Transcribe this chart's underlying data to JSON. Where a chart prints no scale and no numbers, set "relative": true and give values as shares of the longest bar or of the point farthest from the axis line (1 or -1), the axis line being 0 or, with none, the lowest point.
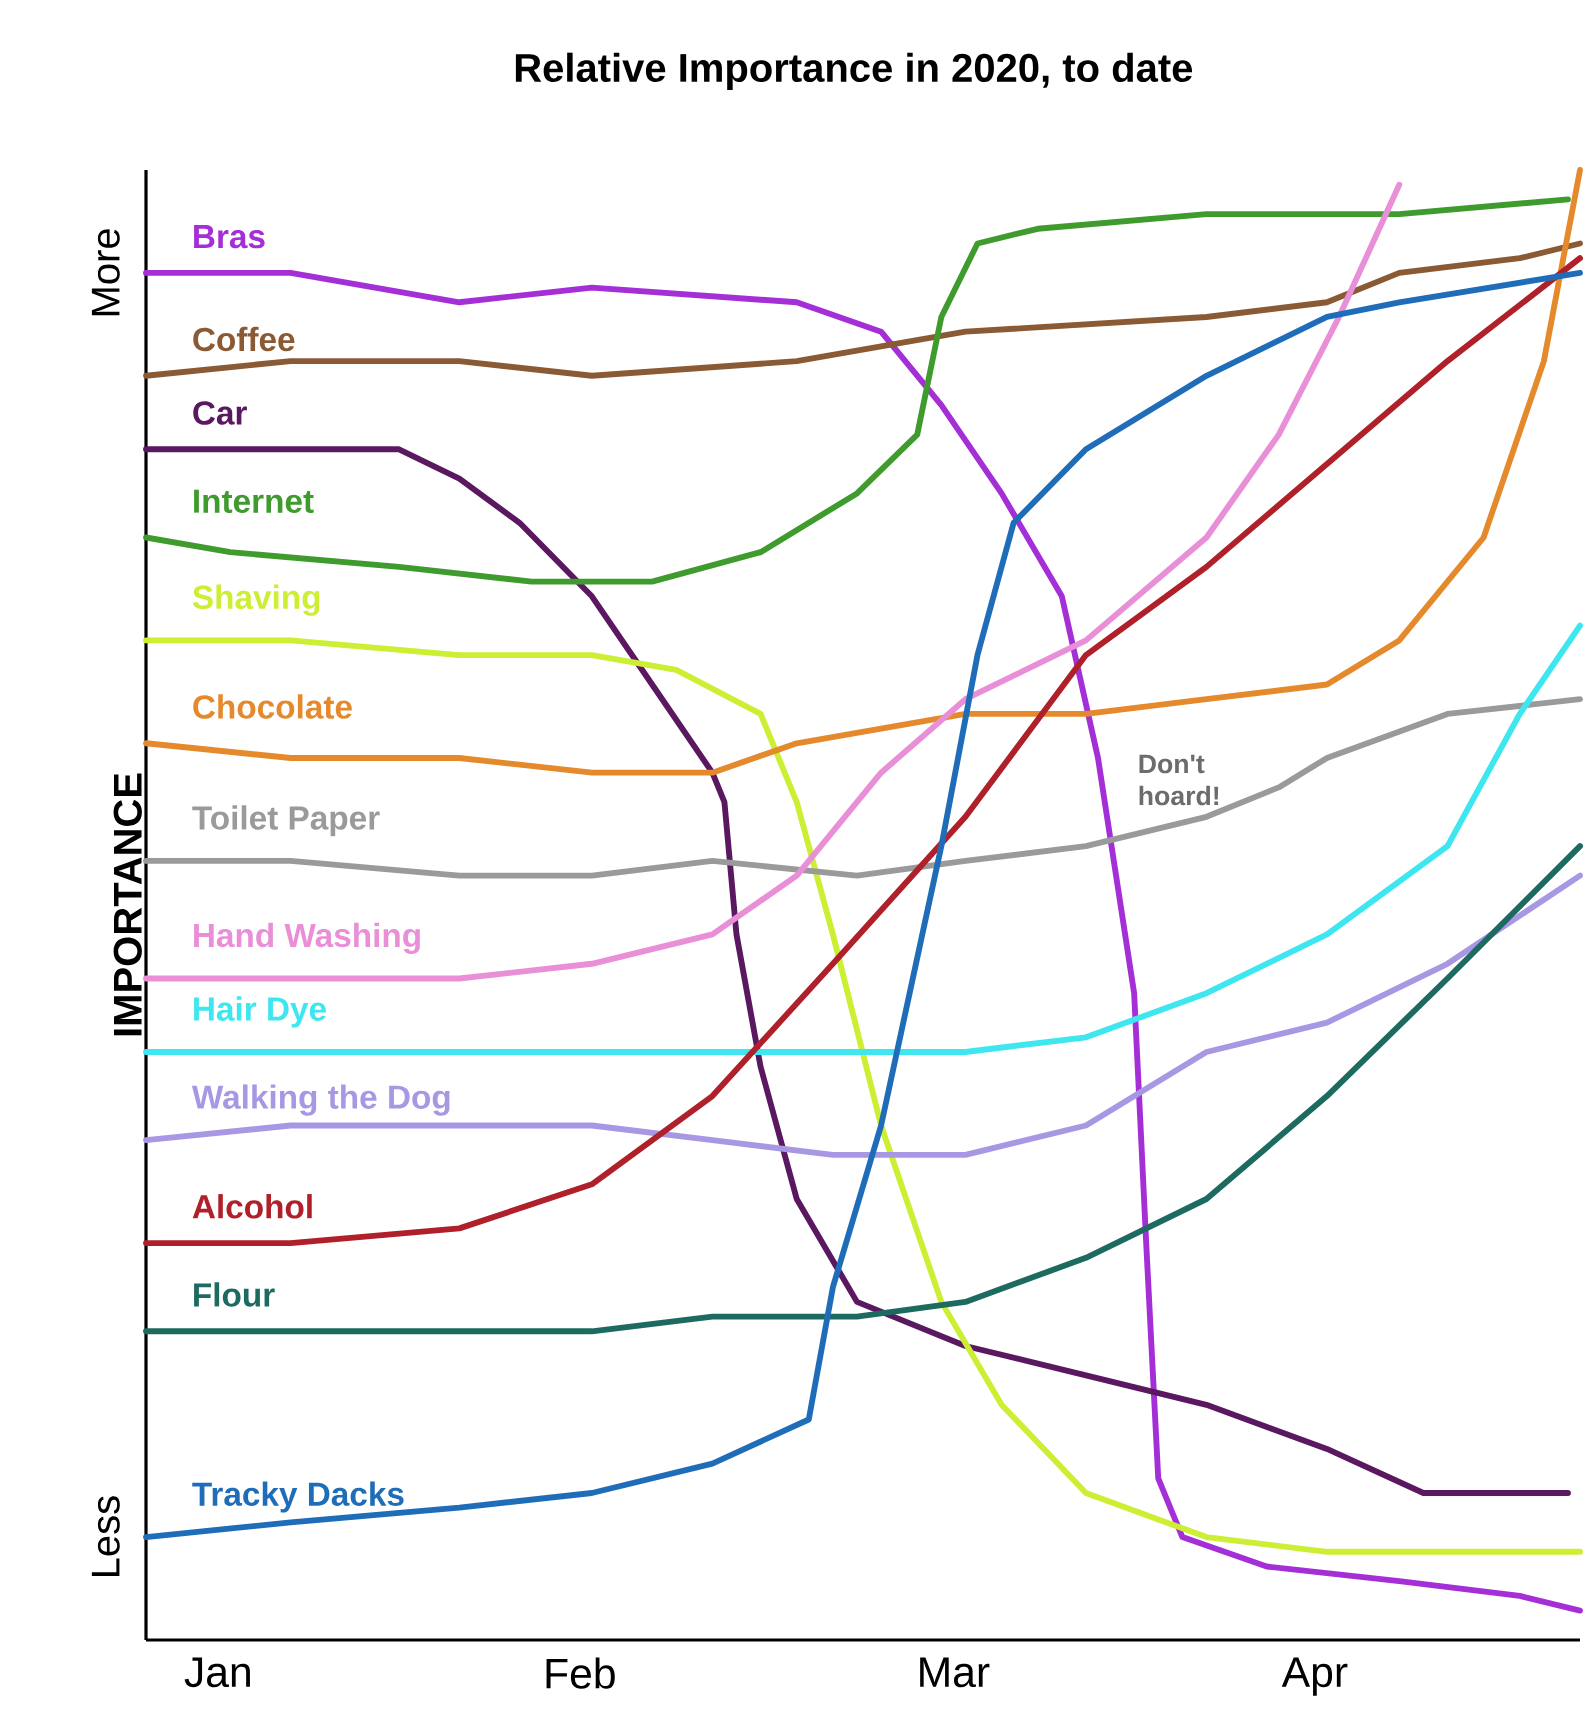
{
  "chart_data": {
    "type": "line",
    "title": "Relative Importance in 2020, to date",
    "ylabel": "IMPORTANCE",
    "relative": true,
    "marker": "none",
    "line_style": "solid",
    "xlim": [
      "2020-01-09",
      "2020-05-07"
    ],
    "xticks": [
      {
        "value": "2020-01-15",
        "label": "Jan"
      },
      {
        "value": "2020-02-14",
        "label": "Feb"
      },
      {
        "value": "2020-03-16",
        "label": "Mar"
      },
      {
        "value": "2020-04-15",
        "label": "Apr"
      }
    ],
    "annotations": [
      "More",
      "Less",
      "Don't hoard!"
    ],
    "series": [
      {
        "name": "Bras",
        "color": "#a52fd6",
        "x": [
          "2020-01-09",
          "2020-01-21",
          "2020-02-04",
          "2020-02-15",
          "2020-03-03",
          "2020-03-10",
          "2020-03-15",
          "2020-03-20",
          "2020-03-25",
          "2020-03-28",
          "2020-03-31",
          "2020-04-01",
          "2020-04-02",
          "2020-04-04",
          "2020-04-11",
          "2020-04-22",
          "2020-05-02",
          "2020-05-07"
        ],
        "values": [
          0.93,
          0.93,
          0.91,
          0.92,
          0.91,
          0.89,
          0.84,
          0.78,
          0.71,
          0.6,
          0.44,
          0.27,
          0.11,
          0.07,
          0.05,
          0.04,
          0.03,
          0.02
        ]
      },
      {
        "name": "Coffee",
        "color": "#8a5a34",
        "x": [
          "2020-01-09",
          "2020-01-21",
          "2020-02-04",
          "2020-02-15",
          "2020-03-03",
          "2020-03-17",
          "2020-04-06",
          "2020-04-16",
          "2020-04-22",
          "2020-05-02",
          "2020-05-07"
        ],
        "values": [
          0.86,
          0.87,
          0.87,
          0.86,
          0.87,
          0.89,
          0.9,
          0.91,
          0.93,
          0.94,
          0.95
        ]
      },
      {
        "name": "Car",
        "color": "#5a1860",
        "x": [
          "2020-01-09",
          "2020-01-21",
          "2020-01-30",
          "2020-02-04",
          "2020-02-09",
          "2020-02-15",
          "2020-02-20",
          "2020-02-25",
          "2020-02-26",
          "2020-02-27",
          "2020-02-29",
          "2020-03-03",
          "2020-03-08",
          "2020-03-17",
          "2020-03-27",
          "2020-04-06",
          "2020-04-16",
          "2020-04-24",
          "2020-04-29",
          "2020-05-02",
          "2020-05-06"
        ],
        "values": [
          0.81,
          0.81,
          0.81,
          0.79,
          0.76,
          0.71,
          0.65,
          0.59,
          0.57,
          0.48,
          0.39,
          0.3,
          0.23,
          0.2,
          0.18,
          0.16,
          0.13,
          0.1,
          0.1,
          0.1,
          0.1
        ]
      },
      {
        "name": "Internet",
        "color": "#3f9b2e",
        "x": [
          "2020-01-09",
          "2020-01-16",
          "2020-01-30",
          "2020-02-10",
          "2020-02-20",
          "2020-02-29",
          "2020-03-08",
          "2020-03-13",
          "2020-03-15",
          "2020-03-18",
          "2020-03-23",
          "2020-04-06",
          "2020-04-22",
          "2020-05-06"
        ],
        "values": [
          0.75,
          0.74,
          0.73,
          0.72,
          0.72,
          0.74,
          0.78,
          0.82,
          0.9,
          0.95,
          0.96,
          0.97,
          0.97,
          0.98
        ]
      },
      {
        "name": "Shaving",
        "color": "#ccee33",
        "x": [
          "2020-01-09",
          "2020-01-21",
          "2020-02-04",
          "2020-02-15",
          "2020-02-22",
          "2020-02-29",
          "2020-03-03",
          "2020-03-06",
          "2020-03-10",
          "2020-03-15",
          "2020-03-20",
          "2020-03-27",
          "2020-04-06",
          "2020-04-16",
          "2020-04-26",
          "2020-05-07"
        ],
        "values": [
          0.68,
          0.68,
          0.67,
          0.67,
          0.66,
          0.63,
          0.57,
          0.48,
          0.35,
          0.23,
          0.16,
          0.1,
          0.07,
          0.06,
          0.06,
          0.06
        ]
      },
      {
        "name": "Chocolate",
        "color": "#e58a2c",
        "x": [
          "2020-01-09",
          "2020-01-21",
          "2020-02-04",
          "2020-02-15",
          "2020-02-25",
          "2020-03-03",
          "2020-03-10",
          "2020-03-17",
          "2020-03-27",
          "2020-04-06",
          "2020-04-16",
          "2020-04-22",
          "2020-04-29",
          "2020-05-04",
          "2020-05-07"
        ],
        "values": [
          0.61,
          0.6,
          0.6,
          0.59,
          0.59,
          0.61,
          0.62,
          0.63,
          0.63,
          0.64,
          0.65,
          0.68,
          0.75,
          0.87,
          1.0
        ]
      },
      {
        "name": "Toilet Paper",
        "color": "#9a9a9a",
        "x": [
          "2020-01-09",
          "2020-01-21",
          "2020-02-04",
          "2020-02-15",
          "2020-02-25",
          "2020-03-08",
          "2020-03-17",
          "2020-03-27",
          "2020-04-06",
          "2020-04-12",
          "2020-04-16",
          "2020-04-26",
          "2020-05-07"
        ],
        "values": [
          0.53,
          0.53,
          0.52,
          0.52,
          0.53,
          0.52,
          0.53,
          0.54,
          0.56,
          0.58,
          0.6,
          0.63,
          0.64
        ]
      },
      {
        "name": "Hand Washing",
        "color": "#e88fd8",
        "x": [
          "2020-01-09",
          "2020-01-21",
          "2020-02-04",
          "2020-02-15",
          "2020-02-25",
          "2020-03-03",
          "2020-03-10",
          "2020-03-17",
          "2020-03-27",
          "2020-04-06",
          "2020-04-12",
          "2020-04-17",
          "2020-04-22"
        ],
        "values": [
          0.45,
          0.45,
          0.45,
          0.46,
          0.48,
          0.52,
          0.59,
          0.64,
          0.68,
          0.75,
          0.82,
          0.9,
          0.99
        ]
      },
      {
        "name": "Hair Dye",
        "color": "#3ee6f0",
        "x": [
          "2020-01-09",
          "2020-01-21",
          "2020-02-04",
          "2020-02-15",
          "2020-03-03",
          "2020-03-17",
          "2020-03-27",
          "2020-04-06",
          "2020-04-16",
          "2020-04-26",
          "2020-05-02",
          "2020-05-07"
        ],
        "values": [
          0.4,
          0.4,
          0.4,
          0.4,
          0.4,
          0.4,
          0.41,
          0.44,
          0.48,
          0.54,
          0.63,
          0.69
        ]
      },
      {
        "name": "Walking the Dog",
        "color": "#a898e4",
        "x": [
          "2020-01-09",
          "2020-01-21",
          "2020-02-04",
          "2020-02-15",
          "2020-02-25",
          "2020-03-06",
          "2020-03-17",
          "2020-03-27",
          "2020-04-06",
          "2020-04-16",
          "2020-04-26",
          "2020-05-07"
        ],
        "values": [
          0.34,
          0.35,
          0.35,
          0.35,
          0.34,
          0.33,
          0.33,
          0.35,
          0.4,
          0.42,
          0.46,
          0.52
        ]
      },
      {
        "name": "Alcohol",
        "color": "#b0202a",
        "x": [
          "2020-01-09",
          "2020-01-21",
          "2020-02-04",
          "2020-02-15",
          "2020-02-25",
          "2020-03-06",
          "2020-03-17",
          "2020-03-27",
          "2020-04-06",
          "2020-04-16",
          "2020-04-26",
          "2020-05-07"
        ],
        "values": [
          0.27,
          0.27,
          0.28,
          0.31,
          0.37,
          0.46,
          0.56,
          0.67,
          0.73,
          0.8,
          0.87,
          0.94
        ]
      },
      {
        "name": "Flour",
        "color": "#1d6b60",
        "x": [
          "2020-01-09",
          "2020-01-21",
          "2020-02-04",
          "2020-02-15",
          "2020-02-25",
          "2020-03-08",
          "2020-03-17",
          "2020-03-27",
          "2020-04-06",
          "2020-04-16",
          "2020-04-26",
          "2020-05-07"
        ],
        "values": [
          0.21,
          0.21,
          0.21,
          0.21,
          0.22,
          0.22,
          0.23,
          0.26,
          0.3,
          0.37,
          0.45,
          0.54
        ]
      },
      {
        "name": "Tracky Dacks",
        "color": "#1f6db9",
        "x": [
          "2020-01-09",
          "2020-01-21",
          "2020-02-04",
          "2020-02-15",
          "2020-02-25",
          "2020-03-04",
          "2020-03-06",
          "2020-03-10",
          "2020-03-15",
          "2020-03-18",
          "2020-03-21",
          "2020-03-27",
          "2020-04-06",
          "2020-04-16",
          "2020-04-22",
          "2020-05-07"
        ],
        "values": [
          0.07,
          0.08,
          0.09,
          0.1,
          0.12,
          0.15,
          0.24,
          0.35,
          0.54,
          0.67,
          0.76,
          0.81,
          0.86,
          0.9,
          0.91,
          0.93
        ]
      }
    ]
  }
}
